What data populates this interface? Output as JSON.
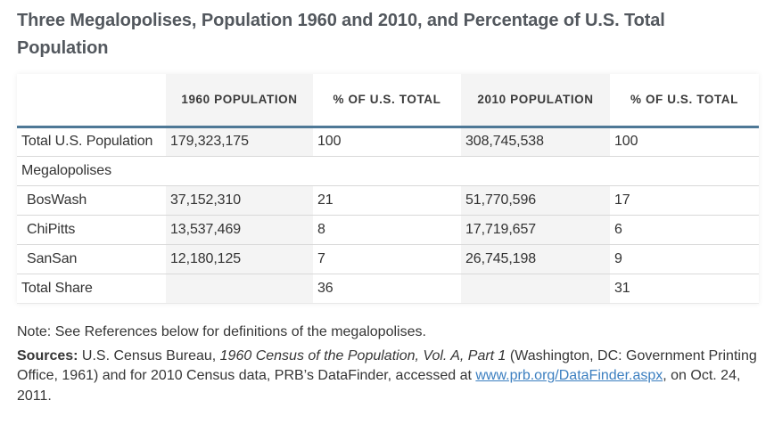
{
  "page": {
    "title": "Three Megalopolises, Population 1960 and 2010, and Percentage of U.S. Total Population"
  },
  "table": {
    "columns": [
      "",
      "1960 POPULATION",
      "% OF U.S. TOTAL",
      "2010 POPULATION",
      "% OF U.S. TOTAL"
    ],
    "rows": [
      {
        "label": "Total U.S. Population",
        "values": [
          "179,323,175",
          "100",
          "308,745,538",
          "100"
        ]
      },
      {
        "label": "Megalopolises"
      },
      {
        "label": "BosWash",
        "values": [
          "37,152,310",
          "21",
          "51,770,596",
          "17"
        ]
      },
      {
        "label": "ChiPitts",
        "values": [
          "13,537,469",
          "8",
          "17,719,657",
          "6"
        ]
      },
      {
        "label": "SanSan",
        "values": [
          "12,180,125",
          "7",
          "26,745,198",
          "9"
        ]
      },
      {
        "label": "Total Share",
        "values": [
          "",
          "36",
          "",
          "31"
        ]
      }
    ]
  },
  "notes": {
    "note": "Note: See References below for definitions of the megalopolises.",
    "sources_label": "Sources:",
    "sources_part1": " U.S. Census Bureau, ",
    "sources_italic": "1960 Census of the Population, Vol. A, Part 1",
    "sources_part2": " (Washington, DC: Government Printing Office, 1961) and for 2010 Census data, PRB’s DataFinder, accessed at ",
    "sources_link": "www.prb.org/DataFinder.aspx",
    "sources_part3": ", on Oct. 24, 2011."
  },
  "colors": {
    "accent_blue": "#4e7896",
    "link_blue": "#3c7fc0",
    "shaded_column": "#f4f4f4",
    "title_text": "#53585e",
    "body_text": "#363636",
    "row_divider": "#d9d9d9"
  },
  "chart_data": {
    "type": "table",
    "title": "Three Megalopolises, Population 1960 and 2010, and Percentage of U.S. Total Population",
    "columns": [
      "",
      "1960 Population",
      "% of U.S. Total",
      "2010 Population",
      "% of U.S. Total"
    ],
    "rows": [
      {
        "label": "Total U.S. Population",
        "pop_1960": 179323175,
        "pct_of_us_1960": 100,
        "pop_2010": 308745538,
        "pct_of_us_2010": 100
      },
      {
        "label": "Megalopolises",
        "section_header": true
      },
      {
        "label": "BosWash",
        "pop_1960": 37152310,
        "pct_of_us_1960": 21,
        "pop_2010": 51770596,
        "pct_of_us_2010": 17
      },
      {
        "label": "ChiPitts",
        "pop_1960": 13537469,
        "pct_of_us_1960": 8,
        "pop_2010": 17719657,
        "pct_of_us_2010": 6
      },
      {
        "label": "SanSan",
        "pop_1960": 12180125,
        "pct_of_us_1960": 7,
        "pop_2010": 26745198,
        "pct_of_us_2010": 9
      },
      {
        "label": "Total Share",
        "pct_of_us_1960": 36,
        "pct_of_us_2010": 31
      }
    ],
    "note": "Note: See References below for definitions of the megalopolises.",
    "sources": "Sources: U.S. Census Bureau, 1960 Census of the Population, Vol. A, Part 1 (Washington, DC: Government Printing Office, 1961) and for 2010 Census data, PRB’s DataFinder, accessed at www.prb.org/DataFinder.aspx, on Oct. 24, 2011.",
    "layout_hints": {
      "shaded_columns": [
        1,
        3
      ],
      "header_rule_color": "#4e7896",
      "grid": "horizontal-only"
    }
  }
}
